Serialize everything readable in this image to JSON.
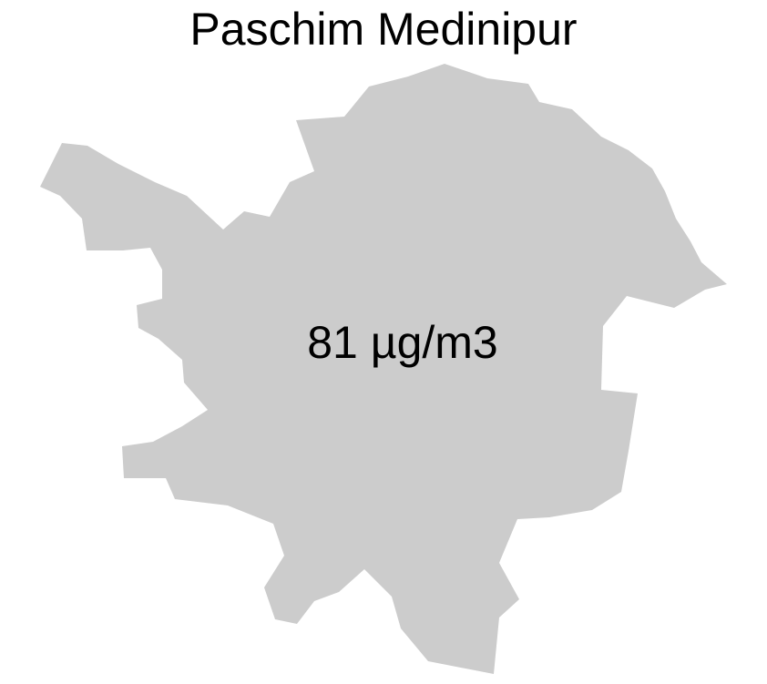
{
  "map": {
    "title": "Paschim Medinipur",
    "value_label": "81 µg/m3",
    "region": {
      "name": "Paschim Medinipur",
      "pm25_value": 81,
      "unit": "µg/m3",
      "fill_color": "#cccccc"
    },
    "background_color": "#ffffff",
    "text_color": "#000000"
  }
}
